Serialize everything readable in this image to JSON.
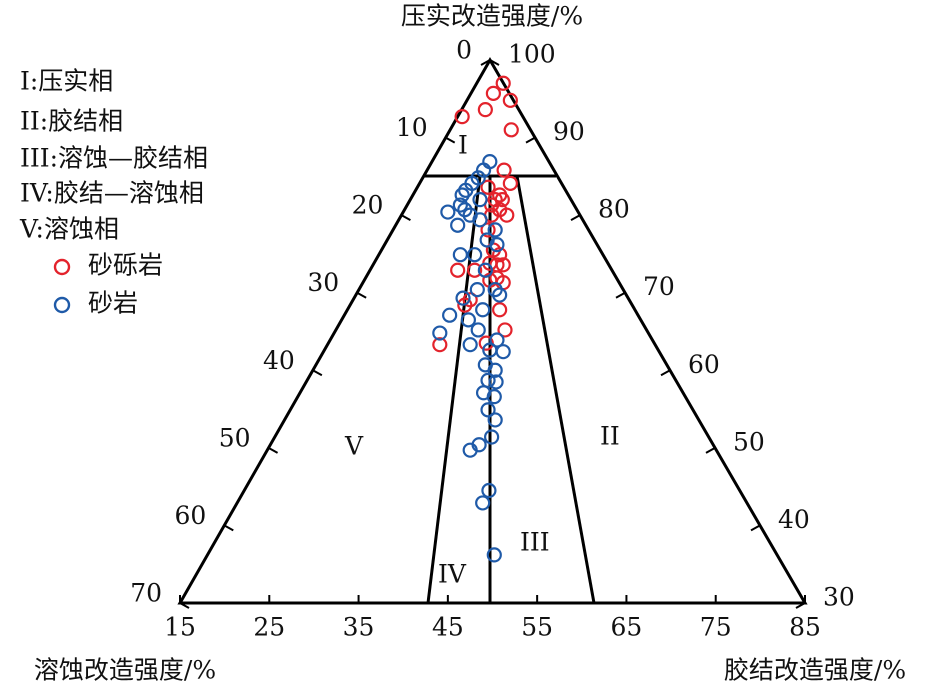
{
  "chart_data": {
    "type": "ternary-scatter",
    "top_title": "压实改造强度/%",
    "left_title": "溶蚀改造强度/%",
    "right_title": "胶结改造强度/%",
    "xlim": [
      15,
      85
    ],
    "xticks": [
      15,
      25,
      35,
      45,
      55,
      65,
      75,
      85
    ],
    "ylim": [
      0,
      70
    ],
    "yticks": [
      0,
      10,
      20,
      30,
      40,
      50,
      60,
      70
    ],
    "y2lim": [
      100,
      30
    ],
    "y2ticks": [
      100,
      90,
      80,
      70,
      60,
      50,
      40,
      30
    ],
    "facies": [
      "I:压实相",
      "II:胶结相",
      "III:溶蚀—胶结相",
      "IV:胶结—溶蚀相",
      "V:溶蚀相"
    ],
    "regions": [
      "I",
      "II",
      "III",
      "IV",
      "V"
    ],
    "series": [
      {
        "name": "砂砾岩",
        "color": "#e3232c",
        "x": [
          51.2,
          50.1,
          52.0,
          49.2,
          46.6,
          52.1,
          51.3,
          52.0,
          49.5,
          50.8,
          50.3,
          51.1,
          49.9,
          50.8,
          51.6,
          49.9,
          49.5,
          50.1,
          50.8,
          49.7,
          50.5,
          51.2,
          48.0,
          50.5,
          46.1,
          49.7,
          51.2,
          46.9,
          50.8,
          47.5,
          51.4,
          49.3,
          44.1
        ],
        "values": [
          3.0,
          4.3,
          5.2,
          6.4,
          7.3,
          9.0,
          14.2,
          15.9,
          16.4,
          17.4,
          18.0,
          18.0,
          18.7,
          19.3,
          20.0,
          20.0,
          21.9,
          24.5,
          25.1,
          26.2,
          26.4,
          26.4,
          27.1,
          28.1,
          27.1,
          28.4,
          28.7,
          31.6,
          32.2,
          30.9,
          34.8,
          36.5,
          36.7
        ]
      },
      {
        "name": "砂岩",
        "color": "#1f5aa8",
        "x": [
          49.7,
          49.0,
          48.4,
          47.7,
          47.0,
          46.6,
          46.4,
          46.9,
          47.5,
          45.0,
          46.1,
          48.6,
          48.6,
          50.3,
          49.4,
          50.5,
          48.0,
          46.4,
          49.2,
          48.3,
          50.3,
          50.8,
          46.7,
          48.9,
          47.3,
          45.2,
          44.1,
          48.4,
          50.5,
          47.5,
          49.7,
          51.2,
          49.2,
          50.3,
          49.5,
          50.4,
          49.0,
          50.2,
          49.5,
          50.3,
          49.9,
          48.5,
          47.5,
          49.6,
          48.9,
          50.2
        ],
        "values": [
          13.1,
          14.2,
          15.2,
          15.9,
          16.8,
          17.4,
          18.7,
          19.3,
          20.0,
          19.6,
          21.3,
          18.0,
          20.6,
          21.9,
          23.2,
          23.8,
          25.1,
          25.1,
          27.1,
          29.6,
          29.6,
          30.3,
          30.7,
          32.2,
          33.5,
          32.9,
          35.2,
          34.8,
          36.1,
          36.7,
          37.4,
          37.6,
          39.3,
          40.0,
          41.3,
          41.5,
          42.9,
          43.4,
          45.1,
          46.4,
          48.6,
          49.6,
          50.3,
          55.5,
          57.1,
          63.8
        ]
      }
    ]
  }
}
